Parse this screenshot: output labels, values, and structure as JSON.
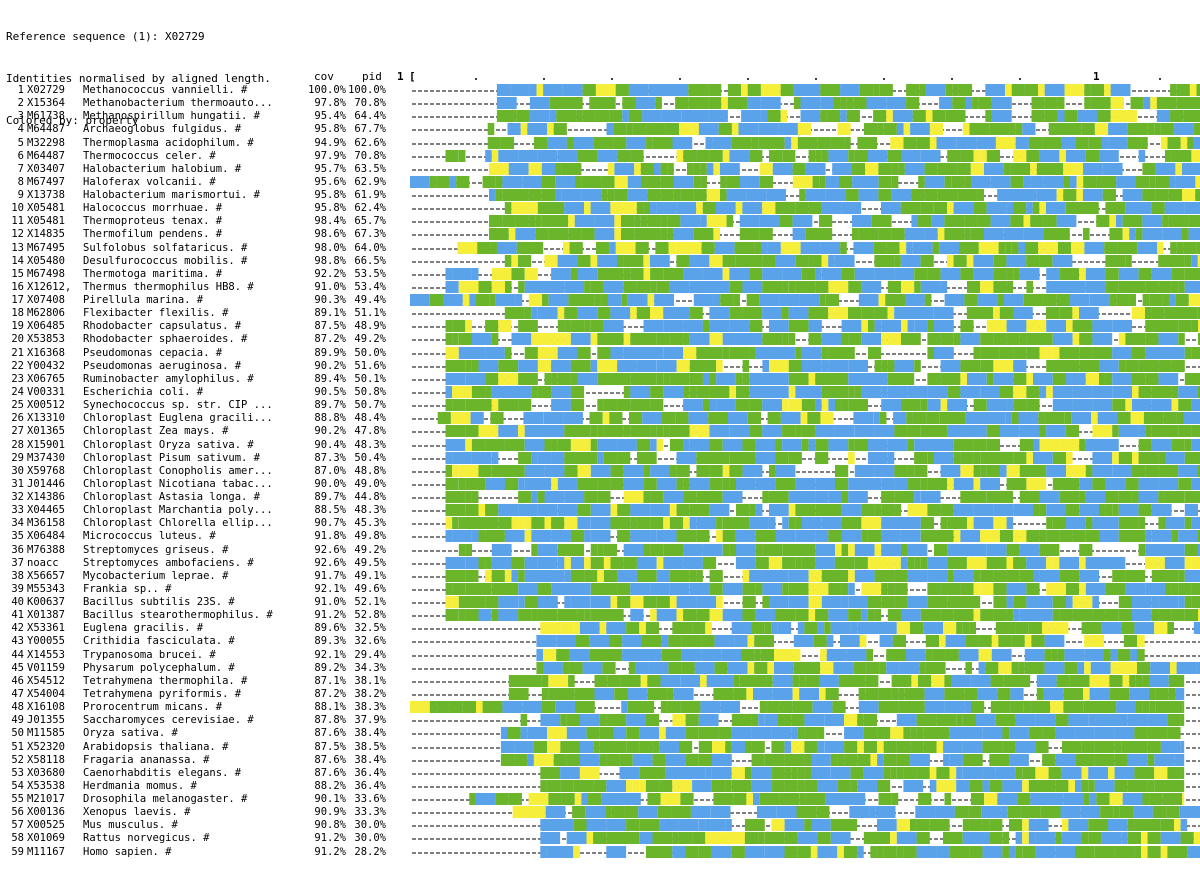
{
  "header": {
    "line1": "Reference sequence (1): X02729",
    "line2": "Identities normalised by aligned length.",
    "line3": "Colored by: property"
  },
  "columns": {
    "cov": "cov",
    "pid": "pid",
    "start": "1",
    "bracket": "[",
    "ruler_mark_1": "1"
  },
  "colors": {
    "green": "#6bb52b",
    "blue": "#5aa3ea",
    "yellow": "#f5ee3a",
    "purple": "#5b2d9c",
    "gap_text": "#000000"
  },
  "rows": [
    {
      "n": "1",
      "acc": "X02729",
      "desc": "Methanococcus vannielli. #",
      "cov": "100.0%",
      "pid": "100.0%",
      "start": 0.11,
      "end": 1.0
    },
    {
      "n": "2",
      "acc": "X15364",
      "desc": "Methanobacterium thermoauto...",
      "cov": "97.8%",
      "pid": "70.8%",
      "start": 0.11,
      "end": 1.0
    },
    {
      "n": "3",
      "acc": "M61738",
      "desc": "Methanospirillum hungatii. #",
      "cov": "95.4%",
      "pid": "64.4%",
      "start": 0.11,
      "end": 1.0
    },
    {
      "n": "4",
      "acc": "M64487",
      "desc": "Archaeoglobus fulgidus. #",
      "cov": "95.8%",
      "pid": "67.7%",
      "start": 0.09,
      "end": 1.0
    },
    {
      "n": "5",
      "acc": "M32298",
      "desc": "Thermoplasma acidophilum. #",
      "cov": "94.9%",
      "pid": "62.6%",
      "start": 0.09,
      "end": 1.0
    },
    {
      "n": "6",
      "acc": "M64487",
      "desc": "Thermococcus celer. #",
      "cov": "97.9%",
      "pid": "70.8%",
      "start": 0.045,
      "end": 1.0
    },
    {
      "n": "7",
      "acc": "X03407",
      "desc": "Halobacterium halobium. #",
      "cov": "95.7%",
      "pid": "63.5%",
      "start": 0.1,
      "end": 1.0
    },
    {
      "n": "8",
      "acc": "M67497",
      "desc": "Haloferax volcanii. #",
      "cov": "95.6%",
      "pid": "62.9%",
      "start": 0.0,
      "end": 1.0
    },
    {
      "n": "9",
      "acc": "X13738",
      "desc": "Halobacterium marismortui. #",
      "cov": "95.8%",
      "pid": "61.9%",
      "start": 0.1,
      "end": 1.0
    },
    {
      "n": "10",
      "acc": "X05481",
      "desc": "Halococcus morrhuae. #",
      "cov": "95.8%",
      "pid": "62.4%",
      "start": 0.12,
      "end": 1.0
    },
    {
      "n": "11",
      "acc": "X05481",
      "desc": "Thermoproteus tenax. #",
      "cov": "98.4%",
      "pid": "65.7%",
      "start": 0.1,
      "end": 1.0
    },
    {
      "n": "12",
      "acc": "X14835",
      "desc": "Thermofilum pendens. #",
      "cov": "98.6%",
      "pid": "67.3%",
      "start": 0.1,
      "end": 1.0
    },
    {
      "n": "13",
      "acc": "M67495",
      "desc": "Sulfolobus solfataricus. #",
      "cov": "98.0%",
      "pid": "64.0%",
      "start": 0.06,
      "end": 1.0
    },
    {
      "n": "14",
      "acc": "X05480",
      "desc": "Desulfurococcus mobilis. #",
      "cov": "98.8%",
      "pid": "66.5%",
      "start": 0.12,
      "end": 1.0
    },
    {
      "n": "15",
      "acc": "M67498",
      "desc": "Thermotoga maritima. #",
      "cov": "92.2%",
      "pid": "53.5%",
      "start": 0.045,
      "end": 1.0
    },
    {
      "n": "16",
      "acc": "X12612,",
      "desc": "Thermus thermophilus HB8. #",
      "cov": "91.0%",
      "pid": "53.4%",
      "start": 0.045,
      "end": 1.0
    },
    {
      "n": "17",
      "acc": "X07408",
      "desc": "Pirellula marina. #",
      "cov": "90.3%",
      "pid": "49.4%",
      "start": 0.0,
      "end": 1.0
    },
    {
      "n": "18",
      "acc": "M62806",
      "desc": "Flexibacter flexilis. #",
      "cov": "89.1%",
      "pid": "51.1%",
      "start": 0.12,
      "end": 1.0
    },
    {
      "n": "19",
      "acc": "X06485",
      "desc": "Rhodobacter capsulatus. #",
      "cov": "87.5%",
      "pid": "48.9%",
      "start": 0.045,
      "end": 1.0
    },
    {
      "n": "20",
      "acc": "X53853",
      "desc": "Rhodobacter sphaeroides. #",
      "cov": "87.2%",
      "pid": "49.2%",
      "start": 0.045,
      "end": 1.0
    },
    {
      "n": "21",
      "acc": "X16368",
      "desc": "Pseudomonas cepacia. #",
      "cov": "89.9%",
      "pid": "50.0%",
      "start": 0.045,
      "end": 1.0
    },
    {
      "n": "22",
      "acc": "Y00432",
      "desc": "Pseudomonas aeruginosa. #",
      "cov": "90.2%",
      "pid": "51.6%",
      "start": 0.045,
      "end": 1.0
    },
    {
      "n": "23",
      "acc": "X06765",
      "desc": "Ruminobacter amylophilus. #",
      "cov": "89.4%",
      "pid": "50.1%",
      "start": 0.045,
      "end": 1.0
    },
    {
      "n": "24",
      "acc": "V00331",
      "desc": "Escherichia coli. #",
      "cov": "90.5%",
      "pid": "50.8%",
      "start": 0.045,
      "end": 1.0
    },
    {
      "n": "25",
      "acc": "X00512",
      "desc": "Synechococcus sp. str. CIP ...",
      "cov": "89.7%",
      "pid": "50.7%",
      "start": 0.045,
      "end": 1.0
    },
    {
      "n": "26",
      "acc": "X13310",
      "desc": "Chloroplast Euglena gracili...",
      "cov": "88.8%",
      "pid": "48.4%",
      "start": 0.035,
      "end": 1.0
    },
    {
      "n": "27",
      "acc": "X01365",
      "desc": "Chloroplast Zea mays. #",
      "cov": "90.2%",
      "pid": "47.8%",
      "start": 0.045,
      "end": 1.0
    },
    {
      "n": "28",
      "acc": "X15901",
      "desc": "Chloroplast Oryza sativa. #",
      "cov": "90.4%",
      "pid": "48.3%",
      "start": 0.045,
      "end": 1.0
    },
    {
      "n": "29",
      "acc": "M37430",
      "desc": "Chloroplast Pisum sativum. #",
      "cov": "87.3%",
      "pid": "50.4%",
      "start": 0.045,
      "end": 1.0
    },
    {
      "n": "30",
      "acc": "X59768",
      "desc": "Chloroplast Conopholis amer...",
      "cov": "87.0%",
      "pid": "48.8%",
      "start": 0.045,
      "end": 1.0
    },
    {
      "n": "31",
      "acc": "J01446",
      "desc": "Chloroplast Nicotiana tabac...",
      "cov": "90.0%",
      "pid": "49.0%",
      "start": 0.045,
      "end": 1.0
    },
    {
      "n": "32",
      "acc": "X14386",
      "desc": "Chloroplast Astasia longa. #",
      "cov": "89.7%",
      "pid": "44.8%",
      "start": 0.045,
      "end": 1.0
    },
    {
      "n": "33",
      "acc": "X04465",
      "desc": "Chloroplast Marchantia poly...",
      "cov": "88.5%",
      "pid": "48.3%",
      "start": 0.045,
      "end": 1.0
    },
    {
      "n": "34",
      "acc": "M36158",
      "desc": "Chloroplast Chlorella ellip...",
      "cov": "90.7%",
      "pid": "45.3%",
      "start": 0.045,
      "end": 1.0
    },
    {
      "n": "35",
      "acc": "X06484",
      "desc": "Micrococcus luteus. #",
      "cov": "91.8%",
      "pid": "49.8%",
      "start": 0.045,
      "end": 1.0
    },
    {
      "n": "36",
      "acc": "M76388",
      "desc": "Streptomyces griseus. #",
      "cov": "92.6%",
      "pid": "49.2%",
      "start": 0.045,
      "end": 1.0
    },
    {
      "n": "37",
      "acc": "noacc",
      "desc": "Streptomyces ambofaciens. #",
      "cov": "92.6%",
      "pid": "49.5%",
      "start": 0.045,
      "end": 1.0
    },
    {
      "n": "38",
      "acc": "X56657",
      "desc": "Mycobacterium leprae. #",
      "cov": "91.7%",
      "pid": "49.1%",
      "start": 0.045,
      "end": 1.0
    },
    {
      "n": "39",
      "acc": "M55343",
      "desc": "Frankia sp.. #",
      "cov": "92.1%",
      "pid": "49.6%",
      "start": 0.045,
      "end": 1.0
    },
    {
      "n": "40",
      "acc": "K00637",
      "desc": "Bacillus subtilis 23S. #",
      "cov": "91.0%",
      "pid": "52.1%",
      "start": 0.045,
      "end": 1.0
    },
    {
      "n": "41",
      "acc": "X01387",
      "desc": "Bacillus stearothermophilus. #",
      "cov": "91.2%",
      "pid": "52.8%",
      "start": 0.045,
      "end": 1.0
    },
    {
      "n": "42",
      "acc": "X53361",
      "desc": "Euglena gracilis. #",
      "cov": "89.6%",
      "pid": "32.5%",
      "start": 0.165,
      "end": 1.0
    },
    {
      "n": "43",
      "acc": "Y00055",
      "desc": "Crithidia fasciculata. #",
      "cov": "89.3%",
      "pid": "32.6%",
      "start": 0.16,
      "end": 0.93
    },
    {
      "n": "44",
      "acc": "X14553",
      "desc": "Trypanosoma brucei. #",
      "cov": "92.1%",
      "pid": "29.4%",
      "start": 0.16,
      "end": 0.93
    },
    {
      "n": "45",
      "acc": "V01159",
      "desc": "Physarum polycephalum. #",
      "cov": "89.2%",
      "pid": "34.3%",
      "start": 0.16,
      "end": 1.0
    },
    {
      "n": "46",
      "acc": "X54512",
      "desc": "Tetrahymena thermophila. #",
      "cov": "87.1%",
      "pid": "38.1%",
      "start": 0.125,
      "end": 0.98
    },
    {
      "n": "47",
      "acc": "X54004",
      "desc": "Tetrahymena pyriformis. #",
      "cov": "87.2%",
      "pid": "38.2%",
      "start": 0.125,
      "end": 0.98
    },
    {
      "n": "48",
      "acc": "X16108",
      "desc": "Prorocentrum micans. #",
      "cov": "88.1%",
      "pid": "38.3%",
      "start": 0.0,
      "end": 0.98
    },
    {
      "n": "49",
      "acc": "J01355",
      "desc": "Saccharomyces cerevisiae. #",
      "cov": "87.8%",
      "pid": "37.9%",
      "start": 0.14,
      "end": 0.98
    },
    {
      "n": "50",
      "acc": "M11585",
      "desc": "Oryza sativa. #",
      "cov": "87.6%",
      "pid": "38.4%",
      "start": 0.115,
      "end": 0.98
    },
    {
      "n": "51",
      "acc": "X52320",
      "desc": "Arabidopsis thaliana. #",
      "cov": "87.5%",
      "pid": "38.5%",
      "start": 0.115,
      "end": 0.98
    },
    {
      "n": "52",
      "acc": "X58118",
      "desc": "Fragaria ananassa. #",
      "cov": "87.6%",
      "pid": "38.4%",
      "start": 0.115,
      "end": 0.98
    },
    {
      "n": "53",
      "acc": "X03680",
      "desc": "Caenorhabditis elegans. #",
      "cov": "87.6%",
      "pid": "36.4%",
      "start": 0.165,
      "end": 0.98
    },
    {
      "n": "54",
      "acc": "X53538",
      "desc": "Herdmania momus. #",
      "cov": "88.2%",
      "pid": "36.4%",
      "start": 0.165,
      "end": 0.98
    },
    {
      "n": "55",
      "acc": "M21017",
      "desc": "Drosophila melanogaster. #",
      "cov": "90.1%",
      "pid": "33.6%",
      "start": 0.075,
      "end": 0.98
    },
    {
      "n": "56",
      "acc": "X00136",
      "desc": "Xenopus laevis. #",
      "cov": "90.9%",
      "pid": "33.3%",
      "start": 0.13,
      "end": 1.0
    },
    {
      "n": "57",
      "acc": "X00525",
      "desc": "Mus musculus. #",
      "cov": "90.8%",
      "pid": "30.0%",
      "start": 0.165,
      "end": 1.0
    },
    {
      "n": "58",
      "acc": "X01069",
      "desc": "Rattus norvegicus. #",
      "cov": "91.2%",
      "pid": "30.0%",
      "start": 0.165,
      "end": 1.0
    },
    {
      "n": "59",
      "acc": "M11167",
      "desc": "Homo sapien. #",
      "cov": "91.2%",
      "pid": "28.2%",
      "start": 0.165,
      "end": 1.0
    }
  ]
}
